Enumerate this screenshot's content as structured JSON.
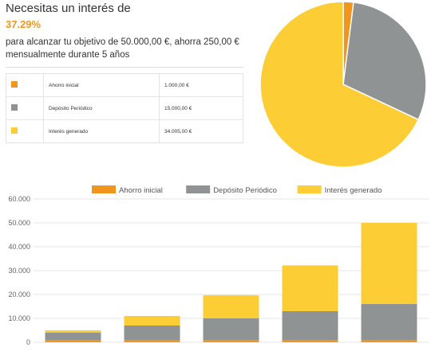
{
  "summary": {
    "headline": "Necesitas un interés de",
    "rate": "37.29%",
    "description": "para alcanzar tu objetivo de 50.000,00 €, ahorra 250,00 € mensualmente durante 5 años"
  },
  "breakdown": [
    {
      "label": "Ahorro inicial",
      "amount": "1.000,00 €",
      "color": "#f0961e"
    },
    {
      "label": "Depósito Periódico",
      "amount": "15.000,00 €",
      "color": "#909393"
    },
    {
      "label": "Interés generado",
      "amount": "34.005,00 €",
      "color": "#fdcd36"
    }
  ],
  "chart_data": [
    {
      "type": "pie",
      "labels": [
        "Ahorro inicial",
        "Depósito Periódico",
        "Interés generado"
      ],
      "values": [
        1000,
        15000,
        34005
      ],
      "colors": [
        "#f0961e",
        "#909393",
        "#fdcd36"
      ]
    },
    {
      "type": "bar",
      "stacked": true,
      "categories": [
        "",
        "",
        "",
        "",
        ""
      ],
      "series": [
        {
          "name": "Ahorro inicial",
          "values": [
            1000,
            1000,
            1000,
            1000,
            1000
          ],
          "color": "#f0961e"
        },
        {
          "name": "Depósito Periódico",
          "values": [
            3000,
            6000,
            9000,
            12000,
            15000
          ],
          "color": "#909393"
        },
        {
          "name": "Interés generado",
          "values": [
            1000,
            4000,
            9700,
            19200,
            34005
          ],
          "color": "#fdcd36"
        }
      ],
      "yticks": [
        "0",
        "10.000",
        "20.000",
        "30.000",
        "40.000",
        "50.000",
        "60.000"
      ],
      "ylim": [
        0,
        60000
      ],
      "grid": true,
      "legend": "top"
    }
  ]
}
